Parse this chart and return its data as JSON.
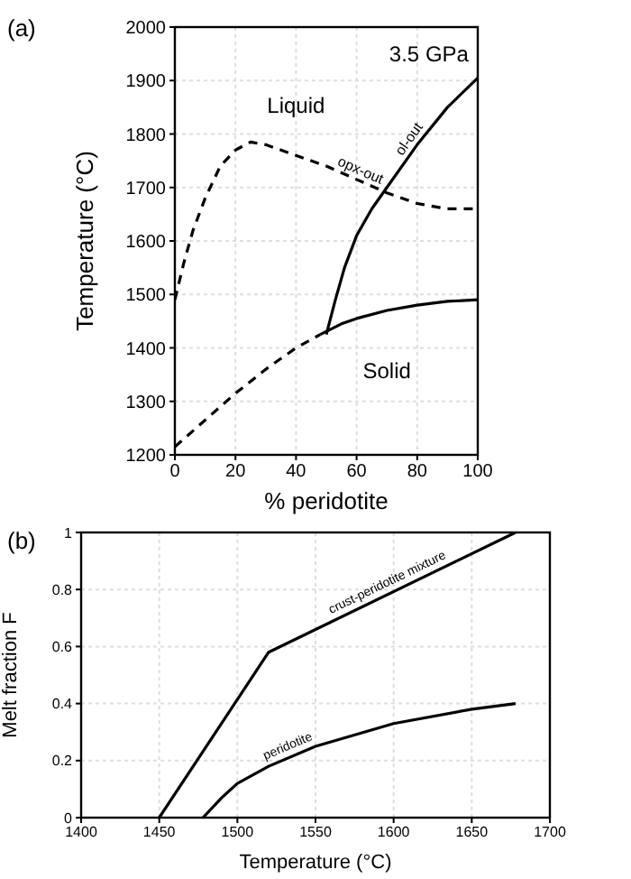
{
  "chart_data": [
    {
      "type": "line",
      "title": "(a)",
      "xlabel": "% peridotite",
      "ylabel": "Temperature (°C)",
      "xlim": [
        0,
        100
      ],
      "ylim": [
        1200,
        2000
      ],
      "xticks": [
        0,
        20,
        40,
        60,
        80,
        100
      ],
      "yticks": [
        1200,
        1300,
        1400,
        1500,
        1600,
        1700,
        1800,
        1900,
        2000
      ],
      "grid": true,
      "marker": "none",
      "series": [
        {
          "color": "#000000",
          "line_style": "dashed",
          "x": [
            0,
            3,
            6,
            10,
            15,
            20,
            25,
            30,
            40,
            50,
            60,
            70,
            80,
            90,
            100
          ],
          "values": [
            1490,
            1560,
            1620,
            1680,
            1740,
            1770,
            1785,
            1780,
            1760,
            1740,
            1715,
            1690,
            1670,
            1660,
            1660
          ]
        },
        {
          "color": "#000000",
          "line_style": "solid",
          "x": [
            50,
            53,
            56,
            60,
            65,
            70,
            80,
            90,
            100
          ],
          "values": [
            1425,
            1490,
            1550,
            1610,
            1660,
            1700,
            1780,
            1850,
            1905
          ]
        },
        {
          "color": "#000000",
          "line_style": "dashed",
          "x": [
            0,
            10,
            20,
            30,
            40,
            48
          ],
          "values": [
            1215,
            1265,
            1315,
            1360,
            1400,
            1425
          ]
        },
        {
          "color": "#000000",
          "line_style": "solid",
          "x": [
            48,
            55,
            60,
            70,
            80,
            90,
            100
          ],
          "values": [
            1425,
            1445,
            1455,
            1470,
            1480,
            1487,
            1490
          ]
        }
      ],
      "annotations": [
        "3.5 GPa",
        "Liquid",
        "Solid",
        {
          "text": "opx-out",
          "x": 60,
          "y": 1715
        },
        {
          "text": "ol-out",
          "x": 80,
          "y": 1780
        }
      ]
    },
    {
      "type": "line",
      "title": "(b)",
      "xlabel": "Temperature (°C)",
      "ylabel": "Melt fraction F",
      "xlim": [
        1400,
        1700
      ],
      "ylim": [
        0,
        1
      ],
      "xticks": [
        1400,
        1450,
        1500,
        1550,
        1600,
        1650,
        1700
      ],
      "yticks": [
        0,
        0.2,
        0.4,
        0.6,
        0.8,
        1
      ],
      "grid": true,
      "marker": "none",
      "series": [
        {
          "name": "crust-peridotite mixture",
          "color": "#000000",
          "line_style": "solid",
          "x": [
            1450,
            1520,
            1678
          ],
          "values": [
            0,
            0.58,
            1.0
          ]
        },
        {
          "name": "peridotite",
          "color": "#000000",
          "line_style": "solid",
          "x": [
            1478,
            1490,
            1500,
            1520,
            1550,
            1600,
            1650,
            1678
          ],
          "values": [
            0,
            0.07,
            0.12,
            0.18,
            0.25,
            0.33,
            0.38,
            0.4
          ]
        }
      ]
    }
  ]
}
